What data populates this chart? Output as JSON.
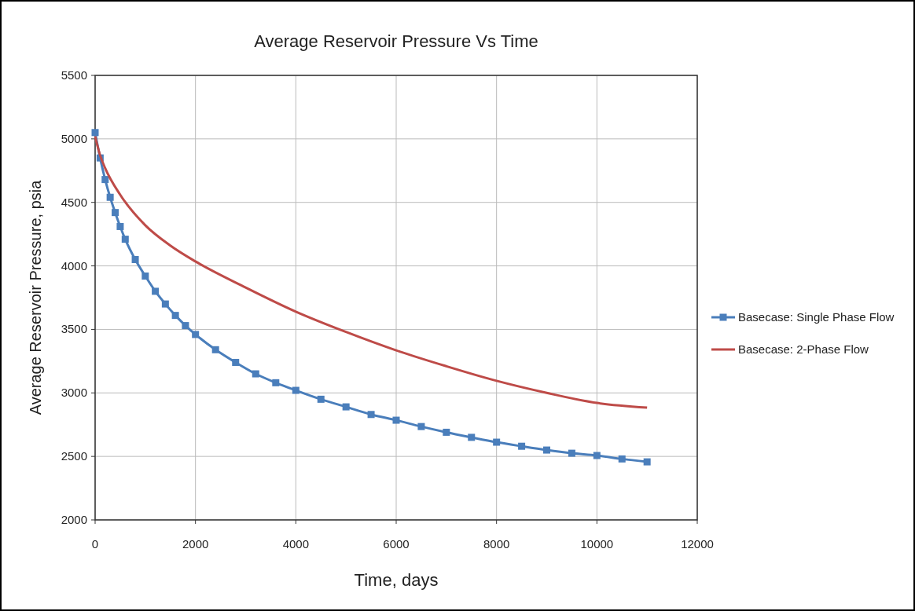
{
  "chart_data": {
    "type": "line",
    "title": "Average Reservoir Pressure Vs Time",
    "xlabel": "Time, days",
    "ylabel": "Average Reservoir Pressure, psia",
    "xlim": [
      0,
      12000
    ],
    "xticks": [
      0,
      2000,
      4000,
      6000,
      8000,
      10000,
      12000
    ],
    "ylim": [
      2000,
      5500
    ],
    "yticks": [
      2000,
      2500,
      3000,
      3500,
      4000,
      4500,
      5000,
      5500
    ],
    "grid": true,
    "legend": "right",
    "series": [
      {
        "name": "Basecase: Single Phase Flow",
        "color": "#4a7ebb",
        "marker": "square",
        "x": [
          0,
          100,
          200,
          300,
          400,
          500,
          600,
          800,
          1000,
          1200,
          1400,
          1600,
          1800,
          2000,
          2400,
          2800,
          3200,
          3600,
          4000,
          4500,
          5000,
          5500,
          6000,
          6500,
          7000,
          7500,
          8000,
          8500,
          9000,
          9500,
          10000,
          10500,
          11000
        ],
        "values": [
          5050,
          4850,
          4680,
          4540,
          4420,
          4310,
          4210,
          4050,
          3920,
          3800,
          3700,
          3610,
          3530,
          3460,
          3340,
          3240,
          3150,
          3080,
          3020,
          2950,
          2890,
          2830,
          2785,
          2735,
          2690,
          2650,
          2612,
          2580,
          2550,
          2525,
          2507,
          2480,
          2457
        ]
      },
      {
        "name": "Basecase: 2-Phase Flow",
        "color": "#be4b48",
        "marker": "none",
        "x": [
          0,
          100,
          200,
          500,
          1000,
          1500,
          2000,
          3000,
          4000,
          5000,
          6000,
          7000,
          8000,
          9000,
          10000,
          11000
        ],
        "values": [
          5020,
          4870,
          4770,
          4560,
          4320,
          4160,
          4035,
          3830,
          3640,
          3480,
          3335,
          3210,
          3095,
          3000,
          2921,
          2884
        ]
      }
    ]
  }
}
